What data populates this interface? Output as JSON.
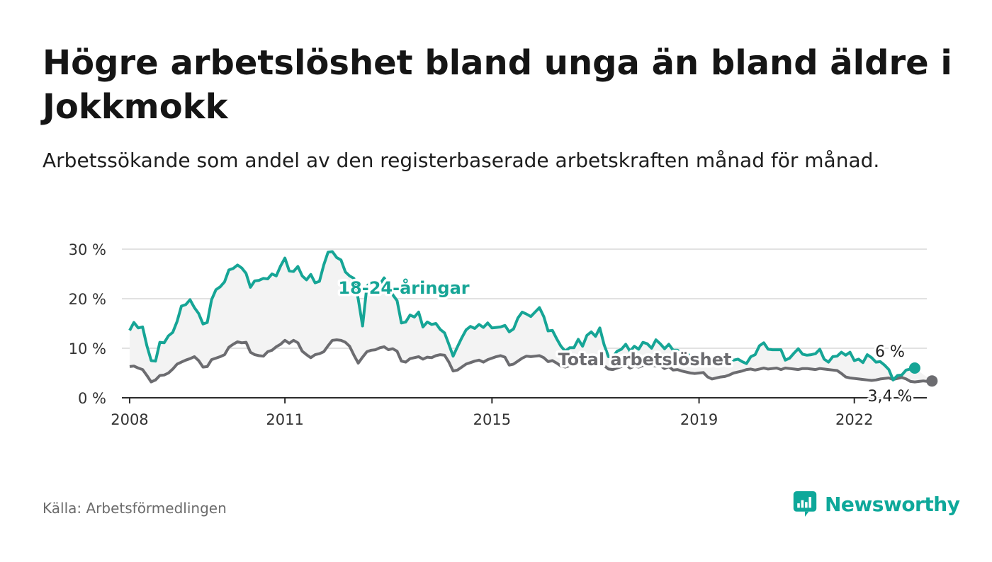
{
  "header": {
    "title": "Högre arbetslöshet bland unga än bland äldre i Jokkmokk",
    "subtitle": "Arbetssökande som andel av den registerbaserade arbetskraften månad för månad."
  },
  "footer": {
    "source": "Källa: Arbetsförmedlingen",
    "brand": "Newsworthy",
    "brand_icon": "newsworthy-logo-icon"
  },
  "colors": {
    "youth": "#16a596",
    "total": "#6c6c70",
    "band": "#f3f3f3",
    "grid": "#d9d9d9",
    "brand": "#0ea89a"
  },
  "chart_data": {
    "type": "line",
    "title": "Högre arbetslöshet bland unga än bland äldre i Jokkmokk",
    "subtitle": "Arbetssökande som andel av den registerbaserade arbetskraften månad för månad.",
    "xlabel": "",
    "ylabel": "",
    "x_start": "2008-01",
    "x_range": [
      2007.85,
      2023.4
    ],
    "ylim": [
      0,
      30
    ],
    "y_ticks": [
      0,
      10,
      20,
      30
    ],
    "y_tick_labels": [
      "0 %",
      "10 %",
      "20 %",
      "30 %"
    ],
    "x_ticks": [
      2008,
      2011,
      2015,
      2019,
      2022
    ],
    "x_tick_labels": [
      "2008",
      "2011",
      "2015",
      "2019",
      "2022"
    ],
    "grid": true,
    "legend": "inline labels on lines",
    "shaded_between_series": true,
    "series": [
      {
        "name": "18-24-åringar",
        "label": "18-24-åringar",
        "end_label": "6 %",
        "values": [
          13.6,
          15.2,
          14.1,
          14.3,
          10.5,
          7.5,
          7.4,
          11.2,
          11.1,
          12.5,
          13.2,
          15.4,
          18.5,
          18.8,
          19.8,
          18.2,
          17.0,
          14.9,
          15.2,
          19.8,
          21.8,
          22.4,
          23.4,
          25.8,
          26.1,
          26.8,
          26.2,
          25.1,
          22.3,
          23.6,
          23.7,
          24.1,
          24.0,
          25.0,
          24.6,
          26.6,
          28.2,
          25.6,
          25.5,
          26.5,
          24.6,
          23.8,
          24.9,
          23.2,
          23.5,
          26.8,
          29.4,
          29.5,
          28.3,
          27.8,
          25.4,
          24.6,
          24.1,
          19.9,
          14.5,
          22.5,
          23.4,
          22.3,
          22.9,
          24.2,
          22.7,
          20.8,
          19.6,
          15.1,
          15.3,
          16.7,
          16.3,
          17.3,
          14.3,
          15.3,
          14.8,
          15.0,
          13.8,
          13.1,
          10.8,
          8.4,
          10.3,
          12.1,
          13.7,
          14.4,
          14.0,
          14.8,
          14.2,
          15.1,
          14.1,
          14.2,
          14.3,
          14.6,
          13.3,
          13.9,
          16.1,
          17.3,
          16.9,
          16.4,
          17.3,
          18.2,
          16.4,
          13.5,
          13.6,
          11.9,
          10.4,
          9.4,
          10.1,
          10.1,
          11.8,
          10.4,
          12.6,
          13.3,
          12.4,
          14.1,
          10.7,
          8.3,
          8.2,
          9.4,
          9.8,
          10.8,
          9.4,
          10.4,
          9.8,
          11.2,
          10.9,
          10.0,
          11.7,
          10.9,
          9.9,
          10.8,
          9.6,
          9.6,
          9.1,
          9.4,
          8.1,
          8.0,
          8.2,
          8.3,
          7.6,
          6.9,
          7.4,
          7.7,
          7.2,
          8.2,
          7.6,
          7.8,
          7.3,
          6.9,
          8.3,
          8.7,
          10.5,
          11.1,
          9.8,
          9.7,
          9.7,
          9.7,
          7.6,
          8.0,
          9.0,
          9.9,
          8.8,
          8.6,
          8.7,
          8.9,
          9.8,
          7.8,
          7.2,
          8.3,
          8.4,
          9.2,
          8.6,
          9.2,
          7.5,
          7.8,
          7.1,
          8.7,
          8.1,
          7.2,
          7.3,
          6.6,
          5.7,
          3.6,
          4.5,
          4.6,
          5.6,
          5.8,
          6.0
        ]
      },
      {
        "name": "Total arbetslöshet",
        "label": "Total arbetslöshet",
        "end_label": "3,4 %",
        "values": [
          6.3,
          6.4,
          6.0,
          5.7,
          4.5,
          3.2,
          3.6,
          4.5,
          4.6,
          5.0,
          5.8,
          6.8,
          7.2,
          7.6,
          7.9,
          8.3,
          7.5,
          6.2,
          6.3,
          7.7,
          8.0,
          8.3,
          8.7,
          10.2,
          10.8,
          11.3,
          11.1,
          11.2,
          9.2,
          8.7,
          8.5,
          8.4,
          9.3,
          9.6,
          10.3,
          10.8,
          11.6,
          11.0,
          11.6,
          11.1,
          9.4,
          8.7,
          8.1,
          8.7,
          8.9,
          9.3,
          10.5,
          11.6,
          11.7,
          11.6,
          11.2,
          10.4,
          8.6,
          7.0,
          8.2,
          9.3,
          9.6,
          9.7,
          10.1,
          10.3,
          9.7,
          9.9,
          9.4,
          7.4,
          7.2,
          7.9,
          8.1,
          8.3,
          7.8,
          8.2,
          8.1,
          8.5,
          8.7,
          8.6,
          7.2,
          5.4,
          5.6,
          6.2,
          6.8,
          7.1,
          7.4,
          7.6,
          7.2,
          7.7,
          8.0,
          8.3,
          8.5,
          8.2,
          6.6,
          6.8,
          7.4,
          8.0,
          8.4,
          8.3,
          8.4,
          8.5,
          8.1,
          7.3,
          7.5,
          7.0,
          6.4,
          6.2,
          6.5,
          6.6,
          7.1,
          6.9,
          7.2,
          7.6,
          7.5,
          7.9,
          6.5,
          5.8,
          5.7,
          6.0,
          6.3,
          6.6,
          6.0,
          6.4,
          6.2,
          6.5,
          6.7,
          6.5,
          6.4,
          6.5,
          5.9,
          6.3,
          5.6,
          5.7,
          5.4,
          5.2,
          5.0,
          4.9,
          5.0,
          5.1,
          4.2,
          3.8,
          4.0,
          4.2,
          4.3,
          4.6,
          5.0,
          5.2,
          5.4,
          5.7,
          5.8,
          5.6,
          5.8,
          6.0,
          5.8,
          5.9,
          6.0,
          5.7,
          6.0,
          5.9,
          5.8,
          5.7,
          5.9,
          5.9,
          5.8,
          5.7,
          5.9,
          5.8,
          5.7,
          5.6,
          5.5,
          4.9,
          4.2,
          4.0,
          3.9,
          3.8,
          3.7,
          3.6,
          3.5,
          3.6,
          3.8,
          3.9,
          4.0,
          3.7,
          3.9,
          4.1,
          3.8,
          3.3,
          3.2,
          3.3,
          3.4,
          3.3,
          3.4
        ]
      }
    ]
  }
}
